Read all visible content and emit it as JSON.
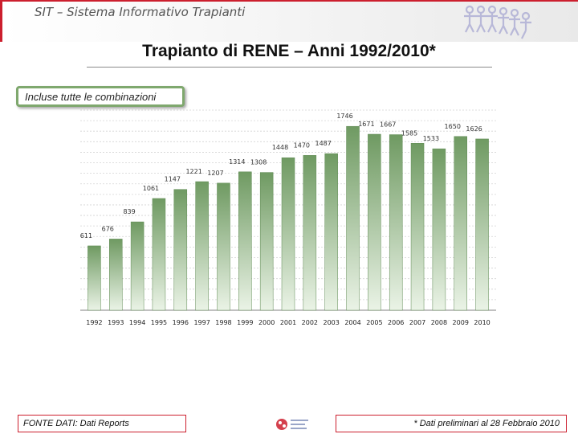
{
  "header": {
    "title": "SIT – Sistema Informativo Trapianti",
    "logo_icon": "people-chain-logo-icon"
  },
  "slide": {
    "title": "Trapianto di RENE – Anni 1992/2010*",
    "note": "Incluse tutte le combinazioni"
  },
  "footer": {
    "source": "FONTE DATI: Dati Reports",
    "footnote": "* Dati preliminari al 28 Febbraio 2010",
    "logo_icon": "network-logo-icon"
  },
  "colors": {
    "accent_red": "#cc1f2e",
    "note_border": "#7fa86e",
    "bar_light": "#eaf3e6",
    "bar_dark": "#6f9a62"
  },
  "chart_data": {
    "type": "bar",
    "categories": [
      "1992",
      "1993",
      "1994",
      "1995",
      "1996",
      "1997",
      "1998",
      "1999",
      "2000",
      "2001",
      "2002",
      "2003",
      "2004",
      "2005",
      "2006",
      "2007",
      "2008",
      "2009",
      "2010"
    ],
    "values": [
      611,
      676,
      839,
      1061,
      1147,
      1221,
      1207,
      1314,
      1308,
      1448,
      1470,
      1487,
      1746,
      1671,
      1667,
      1585,
      1533,
      1650,
      1626
    ],
    "data_labels": [
      "611",
      "676",
      "839",
      "1061",
      "1147",
      "1221",
      "1207",
      "1314",
      "1308",
      "1448",
      "1470",
      "1487",
      "1746",
      "1671",
      "1667",
      "1585",
      "1533",
      "1650",
      "1626"
    ],
    "title": "",
    "xlabel": "",
    "ylabel": "",
    "ylim": [
      0,
      1900
    ],
    "grid": true,
    "legend": "none"
  }
}
